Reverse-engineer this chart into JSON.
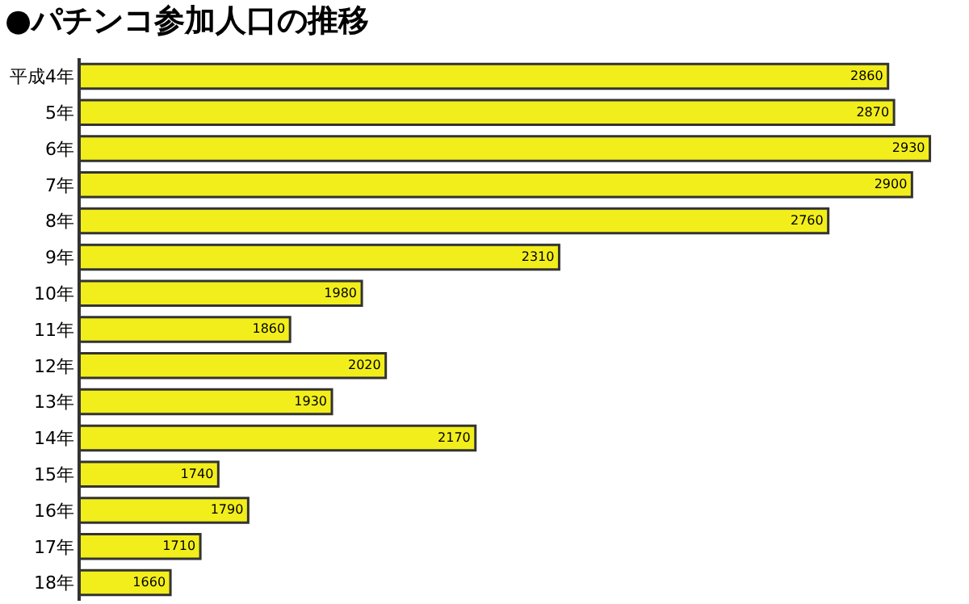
{
  "chart_data": {
    "type": "bar",
    "orientation": "horizontal",
    "title": "●パチンコ参加人口の推移",
    "categories": [
      "平成4年",
      "5年",
      "6年",
      "7年",
      "8年",
      "9年",
      "10年",
      "11年",
      "12年",
      "13年",
      "14年",
      "15年",
      "16年",
      "17年",
      "18年"
    ],
    "values": [
      2860,
      2870,
      2930,
      2900,
      2760,
      2310,
      1980,
      1860,
      2020,
      1930,
      2170,
      1740,
      1790,
      1710,
      1660
    ],
    "color": "#f2ee1c",
    "xlim": [
      1510,
      2990
    ],
    "tick_labels": "y",
    "data_labels": true
  }
}
